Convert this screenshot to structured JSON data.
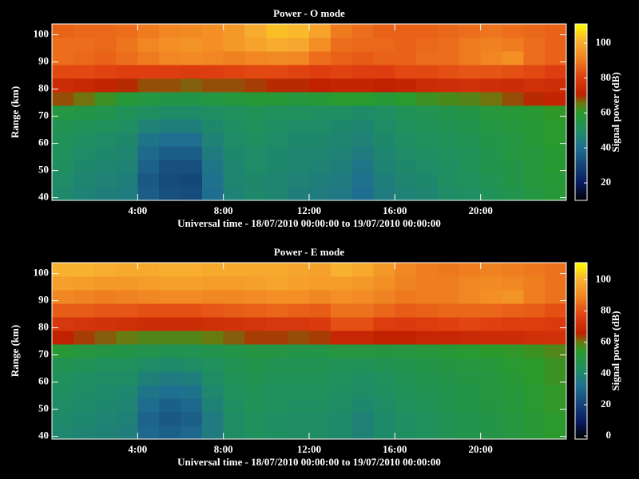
{
  "chart_data": [
    {
      "type": "heatmap",
      "title": "Power - O mode",
      "xlabel": "Universal time - 18/07/2010 00:00:00 to 19/07/2010 00:00:00",
      "ylabel": "Range (km)",
      "colorbar_label": "Signal power (dB)",
      "x": [
        0,
        1,
        2,
        3,
        4,
        5,
        6,
        7,
        8,
        9,
        10,
        11,
        12,
        13,
        14,
        15,
        16,
        17,
        18,
        19,
        20,
        21,
        22,
        23,
        24
      ],
      "y": [
        39,
        44,
        49,
        54,
        59,
        64,
        69,
        74,
        79,
        84,
        89,
        94,
        99,
        104
      ],
      "xlim": [
        0,
        24
      ],
      "ylim": [
        39,
        104
      ],
      "xticks": [
        {
          "value": 4,
          "label": "4:00"
        },
        {
          "value": 8,
          "label": "8:00"
        },
        {
          "value": 12,
          "label": "12:00"
        },
        {
          "value": 16,
          "label": "16:00"
        },
        {
          "value": 20,
          "label": "20:00"
        }
      ],
      "yticks": [
        40,
        50,
        60,
        70,
        80,
        90,
        100
      ],
      "clim": [
        10,
        111
      ],
      "cticks": [
        20,
        40,
        60,
        80,
        100
      ],
      "colormap": [
        [
          0,
          "#000000"
        ],
        [
          0.1,
          "#0a1a60"
        ],
        [
          0.3,
          "#1f6f90"
        ],
        [
          0.4,
          "#1f9060"
        ],
        [
          0.5,
          "#2a9a2a"
        ],
        [
          0.55,
          "#6a7a10"
        ],
        [
          0.6,
          "#c02000"
        ],
        [
          0.7,
          "#e04010"
        ],
        [
          0.8,
          "#f08020"
        ],
        [
          0.9,
          "#f8b030"
        ],
        [
          1,
          "#ffff00"
        ]
      ],
      "values": [
        [
          48,
          46,
          45,
          44,
          36,
          33,
          32,
          40,
          46,
          48,
          47,
          45,
          44,
          43,
          40,
          44,
          46,
          47,
          49,
          50,
          52,
          54,
          56,
          58
        ],
        [
          49,
          47,
          46,
          45,
          35,
          32,
          31,
          41,
          47,
          48,
          47,
          46,
          45,
          44,
          41,
          45,
          47,
          48,
          50,
          51,
          53,
          55,
          57,
          58
        ],
        [
          50,
          48,
          47,
          46,
          37,
          33,
          33,
          42,
          47,
          49,
          48,
          47,
          46,
          45,
          42,
          46,
          48,
          49,
          50,
          52,
          54,
          55,
          57,
          59
        ],
        [
          51,
          49,
          48,
          47,
          39,
          36,
          36,
          44,
          48,
          49,
          48,
          47,
          47,
          46,
          44,
          47,
          49,
          50,
          51,
          52,
          54,
          56,
          57,
          59
        ],
        [
          52,
          50,
          49,
          48,
          42,
          40,
          40,
          46,
          49,
          50,
          49,
          48,
          48,
          47,
          46,
          48,
          50,
          51,
          52,
          53,
          55,
          56,
          58,
          60
        ],
        [
          53,
          52,
          51,
          50,
          46,
          45,
          45,
          48,
          50,
          51,
          50,
          49,
          49,
          48,
          47,
          49,
          51,
          52,
          53,
          54,
          56,
          57,
          58,
          60
        ],
        [
          56,
          55,
          54,
          52,
          50,
          49,
          49,
          50,
          51,
          52,
          51,
          51,
          50,
          50,
          49,
          50,
          52,
          53,
          54,
          55,
          57,
          58,
          59,
          61
        ],
        [
          68,
          66,
          62,
          58,
          56,
          55,
          55,
          56,
          57,
          58,
          58,
          57,
          58,
          60,
          60,
          58,
          60,
          62,
          63,
          64,
          66,
          68,
          70,
          72
        ],
        [
          74,
          73,
          72,
          70,
          68,
          68,
          67,
          68,
          68,
          69,
          70,
          70,
          71,
          72,
          72,
          71,
          72,
          74,
          75,
          76,
          75,
          74,
          76,
          75
        ],
        [
          82,
          82,
          81,
          80,
          80,
          80,
          79,
          80,
          81,
          82,
          82,
          81,
          80,
          81,
          80,
          80,
          82,
          82,
          83,
          84,
          84,
          83,
          82,
          80
        ],
        [
          88,
          87,
          86,
          88,
          90,
          92,
          93,
          92,
          91,
          92,
          93,
          92,
          88,
          86,
          85,
          86,
          86,
          88,
          88,
          90,
          92,
          94,
          88,
          86
        ],
        [
          88,
          88,
          87,
          89,
          92,
          94,
          95,
          94,
          96,
          98,
          100,
          99,
          94,
          88,
          87,
          87,
          86,
          87,
          88,
          90,
          91,
          90,
          88,
          86
        ],
        [
          86,
          87,
          87,
          88,
          90,
          92,
          93,
          94,
          96,
          100,
          103,
          102,
          98,
          90,
          88,
          86,
          86,
          86,
          87,
          88,
          89,
          88,
          87,
          86
        ]
      ]
    },
    {
      "type": "heatmap",
      "title": "Power - E mode",
      "xlabel": "Universal time - 18/07/2010 00:00:00 to 19/07/2010 00:00:00",
      "ylabel": "Range (km)",
      "colorbar_label": "Signal power (dB)",
      "x": [
        0,
        1,
        2,
        3,
        4,
        5,
        6,
        7,
        8,
        9,
        10,
        11,
        12,
        13,
        14,
        15,
        16,
        17,
        18,
        19,
        20,
        21,
        22,
        23,
        24
      ],
      "y": [
        39,
        44,
        49,
        54,
        59,
        64,
        69,
        74,
        79,
        84,
        89,
        94,
        99,
        104
      ],
      "xlim": [
        0,
        24
      ],
      "ylim": [
        39,
        104
      ],
      "xticks": [
        {
          "value": 4,
          "label": "4:00"
        },
        {
          "value": 8,
          "label": "8:00"
        },
        {
          "value": 12,
          "label": "12:00"
        },
        {
          "value": 16,
          "label": "16:00"
        },
        {
          "value": 20,
          "label": "20:00"
        }
      ],
      "yticks": [
        40,
        50,
        60,
        70,
        80,
        90,
        100
      ],
      "clim": [
        -2,
        111
      ],
      "cticks": [
        0,
        20,
        40,
        60,
        80,
        100
      ],
      "colormap": [
        [
          0,
          "#000000"
        ],
        [
          0.1,
          "#0a1a60"
        ],
        [
          0.3,
          "#1f6f90"
        ],
        [
          0.4,
          "#1f9060"
        ],
        [
          0.5,
          "#2a9a2a"
        ],
        [
          0.55,
          "#6a7a10"
        ],
        [
          0.6,
          "#c02000"
        ],
        [
          0.7,
          "#e04010"
        ],
        [
          0.8,
          "#f08020"
        ],
        [
          0.9,
          "#f8b030"
        ],
        [
          1,
          "#ffff00"
        ]
      ],
      "values": [
        [
          40,
          39,
          38,
          37,
          30,
          28,
          30,
          36,
          42,
          44,
          43,
          42,
          42,
          41,
          38,
          41,
          43,
          44,
          46,
          47,
          48,
          50,
          52,
          54
        ],
        [
          41,
          40,
          39,
          38,
          29,
          26,
          28,
          36,
          42,
          44,
          43,
          42,
          42,
          41,
          38,
          41,
          43,
          44,
          46,
          47,
          48,
          50,
          52,
          54
        ],
        [
          42,
          41,
          40,
          39,
          31,
          28,
          30,
          38,
          43,
          45,
          44,
          43,
          43,
          42,
          40,
          42,
          44,
          45,
          47,
          48,
          49,
          51,
          53,
          55
        ],
        [
          43,
          42,
          41,
          40,
          34,
          32,
          33,
          40,
          44,
          45,
          44,
          44,
          44,
          43,
          42,
          43,
          45,
          46,
          47,
          48,
          50,
          51,
          53,
          55
        ],
        [
          44,
          43,
          42,
          42,
          38,
          36,
          37,
          42,
          45,
          46,
          45,
          45,
          45,
          44,
          43,
          44,
          46,
          47,
          48,
          49,
          50,
          52,
          54,
          56
        ],
        [
          46,
          45,
          44,
          44,
          42,
          41,
          42,
          44,
          46,
          47,
          46,
          46,
          46,
          45,
          45,
          46,
          47,
          48,
          49,
          50,
          51,
          53,
          54,
          56
        ],
        [
          52,
          50,
          49,
          48,
          47,
          46,
          46,
          47,
          48,
          49,
          49,
          48,
          48,
          50,
          50,
          49,
          50,
          51,
          52,
          53,
          54,
          55,
          56,
          58
        ],
        [
          66,
          64,
          62,
          60,
          58,
          58,
          58,
          60,
          62,
          64,
          64,
          63,
          64,
          68,
          68,
          66,
          66,
          68,
          68,
          69,
          70,
          70,
          71,
          72
        ],
        [
          74,
          73,
          72,
          71,
          70,
          70,
          70,
          71,
          72,
          73,
          74,
          74,
          75,
          80,
          80,
          76,
          75,
          76,
          77,
          78,
          77,
          76,
          76,
          75
        ],
        [
          82,
          82,
          81,
          81,
          80,
          80,
          80,
          81,
          82,
          83,
          84,
          83,
          82,
          86,
          86,
          84,
          82,
          83,
          84,
          84,
          84,
          83,
          82,
          80
        ],
        [
          90,
          89,
          88,
          89,
          90,
          91,
          91,
          90,
          90,
          91,
          92,
          92,
          90,
          92,
          91,
          89,
          87,
          88,
          88,
          90,
          92,
          93,
          88,
          86
        ],
        [
          96,
          95,
          94,
          94,
          95,
          96,
          96,
          95,
          95,
          96,
          97,
          96,
          95,
          95,
          94,
          92,
          89,
          88,
          88,
          90,
          91,
          90,
          88,
          86
        ],
        [
          100,
          100,
          99,
          98,
          98,
          99,
          99,
          98,
          98,
          98,
          98,
          97,
          96,
          100,
          98,
          94,
          90,
          88,
          87,
          88,
          89,
          88,
          87,
          86
        ]
      ]
    }
  ]
}
